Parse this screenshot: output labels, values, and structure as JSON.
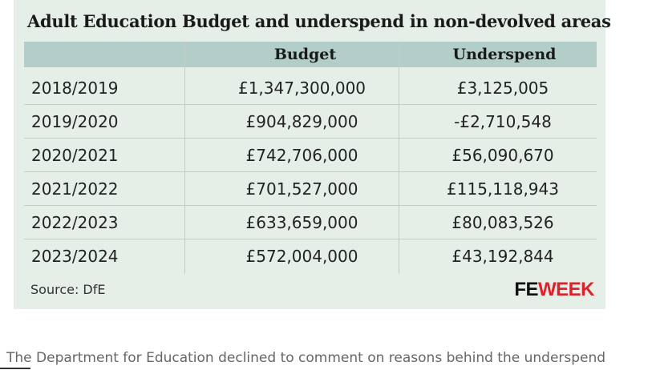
{
  "header": {
    "title": "Adult Education Budget and underspend in non-devolved areas"
  },
  "table": {
    "columns": [
      "Budget",
      "Underspend"
    ],
    "rows": [
      [
        "2018/2019",
        "£1,347,300,000",
        "£3,125,005"
      ],
      [
        "2019/2020",
        "£904,829,000",
        "-£2,710,548"
      ],
      [
        "2020/2021",
        "£742,706,000",
        "£56,090,670"
      ],
      [
        "2021/2022",
        "£701,527,000",
        "£115,118,943"
      ],
      [
        "2022/2023",
        "£633,659,000",
        "£80,083,526"
      ],
      [
        "2023/2024",
        "£572,004,000",
        "£43,192,844"
      ]
    ]
  },
  "footer": {
    "source": "Source: DfE",
    "logo": {
      "fe": "FE",
      "week": "WEEK"
    }
  },
  "caption": "The Department for Education declined to comment on reasons behind the underspend"
}
